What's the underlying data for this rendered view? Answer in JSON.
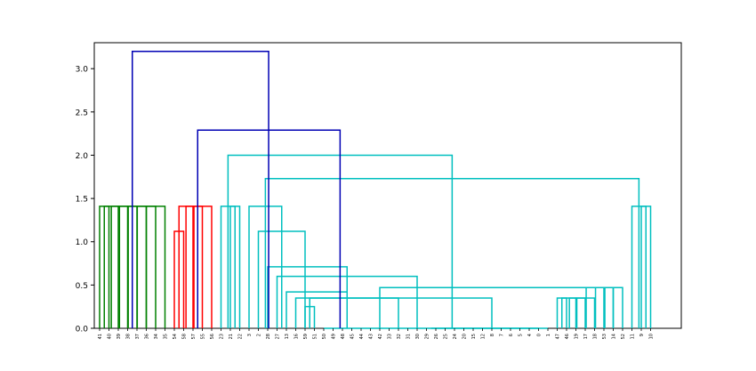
{
  "chart_data": {
    "type": "dendrogram",
    "ylim": [
      0,
      3.3
    ],
    "y_ticks": [
      0.0,
      0.5,
      1.0,
      1.5,
      2.0,
      2.5,
      3.0
    ],
    "y_tick_labels": [
      "0.0",
      "0.5",
      "1.0",
      "1.5",
      "2.0",
      "2.5",
      "3.0"
    ],
    "leaf_labels": [
      "41",
      "40",
      "39",
      "38",
      "37",
      "36",
      "34",
      "35",
      "54",
      "58",
      "57",
      "55",
      "56",
      "23",
      "21",
      "22",
      "3",
      "2",
      "28",
      "27",
      "13",
      "16",
      "59",
      "51",
      "50",
      "49",
      "48",
      "45",
      "44",
      "43",
      "42",
      "33",
      "32",
      "31",
      "30",
      "29",
      "26",
      "25",
      "24",
      "20",
      "15",
      "12",
      "8",
      "7",
      "6",
      "5",
      "4",
      "0",
      "1",
      "47",
      "46",
      "19",
      "17",
      "18",
      "53",
      "14",
      "52",
      "11",
      "9",
      "10"
    ],
    "colors": {
      "group1": "#008000",
      "group2": "#ff0000",
      "group3": "#00bfbf",
      "above": "#0000b4",
      "axes": "#000000"
    },
    "merges": [
      {
        "left": 0,
        "right": 1,
        "height": 1.41,
        "color": "group1"
      },
      {
        "left": 0.5,
        "right": 2,
        "height": 1.41,
        "color": "group1"
      },
      {
        "left": 1.25,
        "right": 3,
        "height": 1.41,
        "color": "group1"
      },
      {
        "left": 2.125,
        "right": 4,
        "height": 1.41,
        "color": "group1"
      },
      {
        "left": 3.0625,
        "right": 5,
        "height": 1.41,
        "color": "group1"
      },
      {
        "left": 4.03,
        "right": 6,
        "height": 1.41,
        "color": "group1"
      },
      {
        "left": 5.0,
        "right": 7,
        "height": 1.41,
        "color": "group1"
      },
      {
        "left": 8,
        "right": 9,
        "height": 1.12,
        "color": "group2"
      },
      {
        "left": 8.5,
        "right": 10,
        "height": 1.41,
        "color": "group2"
      },
      {
        "left": 9.25,
        "right": 11,
        "height": 1.41,
        "color": "group2"
      },
      {
        "left": 10.1,
        "right": 12,
        "height": 1.41,
        "color": "group2"
      },
      {
        "left": 14,
        "right": 15,
        "height": 1.41,
        "color": "group3"
      },
      {
        "left": 13,
        "right": 14.5,
        "height": 1.41,
        "color": "group3"
      },
      {
        "left": 22,
        "right": 23,
        "height": 0.25,
        "color": "group3"
      },
      {
        "left": 24,
        "right": 47,
        "height": 0.0,
        "color": "group3"
      },
      {
        "left": 48,
        "right": 35.5,
        "height": 0.0,
        "color": "group3"
      },
      {
        "left": 22.5,
        "right": 42,
        "height": 0.35,
        "color": "group3"
      },
      {
        "left": 21,
        "right": 32.0,
        "height": 0.35,
        "color": "group3"
      },
      {
        "left": 20,
        "right": 26.5,
        "height": 0.42,
        "color": "group3"
      },
      {
        "left": 49,
        "right": 50,
        "height": 0.35,
        "color": "group3"
      },
      {
        "left": 49.5,
        "right": 51,
        "height": 0.35,
        "color": "group3"
      },
      {
        "left": 50.3,
        "right": 52,
        "height": 0.35,
        "color": "group3"
      },
      {
        "left": 51.1,
        "right": 53,
        "height": 0.35,
        "color": "group3"
      },
      {
        "left": 52.1,
        "right": 54,
        "height": 0.47,
        "color": "group3"
      },
      {
        "left": 53.1,
        "right": 55,
        "height": 0.47,
        "color": "group3"
      },
      {
        "left": 54.1,
        "right": 56,
        "height": 0.47,
        "color": "group3"
      },
      {
        "left": 30,
        "right": 55.0,
        "height": 0.47,
        "color": "group3"
      },
      {
        "left": 19,
        "right": 34.0,
        "height": 0.6,
        "color": "group3"
      },
      {
        "left": 18,
        "right": 26.5,
        "height": 0.71,
        "color": "group3"
      },
      {
        "left": 17,
        "right": 22.0,
        "height": 1.12,
        "color": "group3"
      },
      {
        "left": 16,
        "right": 19.5,
        "height": 1.41,
        "color": "group3"
      },
      {
        "left": 58,
        "right": 59,
        "height": 1.41,
        "color": "group3"
      },
      {
        "left": 57,
        "right": 58.5,
        "height": 1.41,
        "color": "group3"
      },
      {
        "left": 17.75,
        "right": 57.75,
        "height": 1.73,
        "color": "group3"
      },
      {
        "left": 13.75,
        "right": 37.75,
        "height": 2.0,
        "color": "group3"
      },
      {
        "left": 10.5,
        "right": 25.75,
        "height": 2.29,
        "color": "above"
      },
      {
        "left": 3.5,
        "right": 18.1,
        "height": 3.2,
        "color": "above"
      }
    ]
  }
}
